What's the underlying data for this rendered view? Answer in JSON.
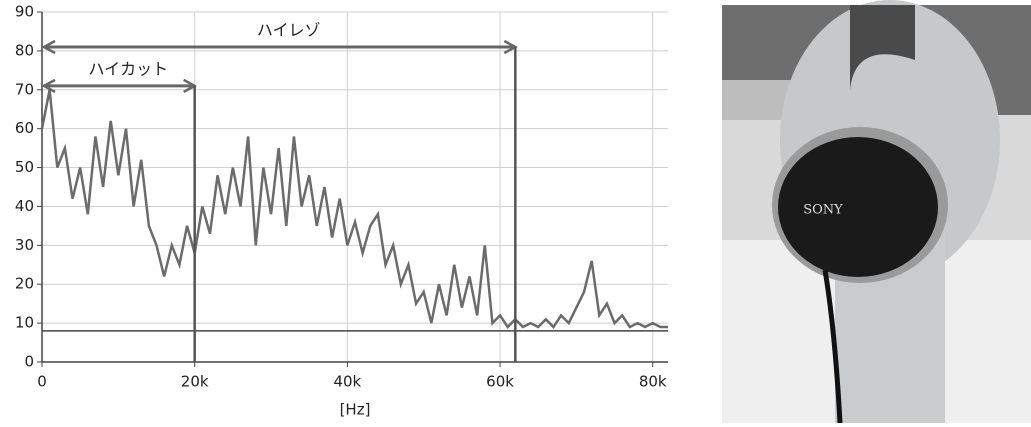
{
  "chart_data": {
    "type": "line",
    "x_label": "[Hz]",
    "x": [
      0,
      1000,
      2000,
      3000,
      4000,
      5000,
      6000,
      7000,
      8000,
      9000,
      10000,
      11000,
      12000,
      13000,
      14000,
      15000,
      16000,
      17000,
      18000,
      19000,
      20000,
      21000,
      22000,
      23000,
      24000,
      25000,
      26000,
      27000,
      28000,
      29000,
      30000,
      31000,
      32000,
      33000,
      34000,
      35000,
      36000,
      37000,
      38000,
      39000,
      40000,
      41000,
      42000,
      43000,
      44000,
      45000,
      46000,
      47000,
      48000,
      49000,
      50000,
      51000,
      52000,
      53000,
      54000,
      55000,
      56000,
      57000,
      58000,
      59000,
      60000,
      61000,
      62000,
      63000,
      64000,
      65000,
      66000,
      67000,
      68000,
      69000,
      70000,
      71000,
      72000,
      73000,
      74000,
      75000,
      76000,
      77000,
      78000,
      79000,
      80000,
      81000,
      82000
    ],
    "series": [
      {
        "color": "#6b6b6b",
        "values": [
          60,
          70,
          50,
          55,
          42,
          50,
          38,
          58,
          45,
          62,
          48,
          60,
          40,
          52,
          35,
          30,
          22,
          30,
          25,
          35,
          28,
          40,
          33,
          48,
          38,
          50,
          40,
          58,
          30,
          50,
          38,
          55,
          35,
          58,
          40,
          48,
          35,
          45,
          32,
          42,
          30,
          36,
          28,
          35,
          38,
          25,
          30,
          20,
          25,
          15,
          18,
          10,
          20,
          12,
          25,
          14,
          22,
          12,
          30,
          10,
          12,
          9,
          11,
          9,
          10,
          9,
          11,
          9,
          12,
          10,
          14,
          18,
          26,
          12,
          15,
          10,
          12,
          9,
          10,
          9,
          10,
          9,
          9
        ]
      }
    ],
    "xlim": [
      0,
      82000
    ],
    "xticks": [
      0,
      {
        "value": 20000,
        "label": "20k"
      },
      {
        "value": 40000,
        "label": "40k"
      },
      {
        "value": 60000,
        "label": "60k"
      },
      {
        "value": 80000,
        "label": "80k"
      }
    ],
    "ylim": [
      0,
      90
    ],
    "yticks": [
      0,
      10,
      20,
      30,
      40,
      50,
      60,
      70,
      80,
      90
    ],
    "grid": true,
    "hline": 8,
    "annotations": [
      {
        "text": "ハイレゾ",
        "x": [
          0,
          62000
        ],
        "y": 81
      },
      {
        "text": "ハイカット",
        "x": [
          0,
          20000
        ],
        "y": 71
      }
    ]
  },
  "photo": {
    "brand": "SONY"
  }
}
